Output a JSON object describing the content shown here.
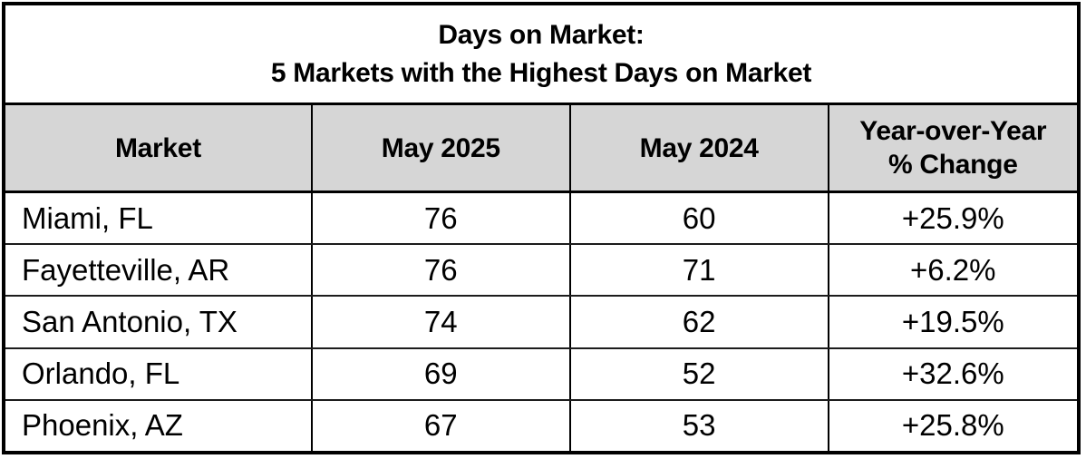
{
  "chart_data": {
    "type": "table",
    "title": "Days on Market:\n5 Markets with the Highest Days on Market",
    "columns": [
      "Market",
      "May 2025",
      "May 2024",
      "Year-over-Year\n% Change"
    ],
    "rows": [
      [
        "Miami, FL",
        76,
        60,
        "+25.9%"
      ],
      [
        "Fayetteville, AR",
        76,
        71,
        "+6.2%"
      ],
      [
        "San Antonio, TX",
        74,
        62,
        "+19.5%"
      ],
      [
        "Orlando, FL",
        69,
        52,
        "+32.6%"
      ],
      [
        "Phoenix, AZ",
        67,
        53,
        "+25.8%"
      ]
    ]
  },
  "styles": {
    "header_background": "#d6d6d6",
    "border_color": "#000000",
    "row_background": "#ffffff",
    "text_color": "#000000"
  }
}
